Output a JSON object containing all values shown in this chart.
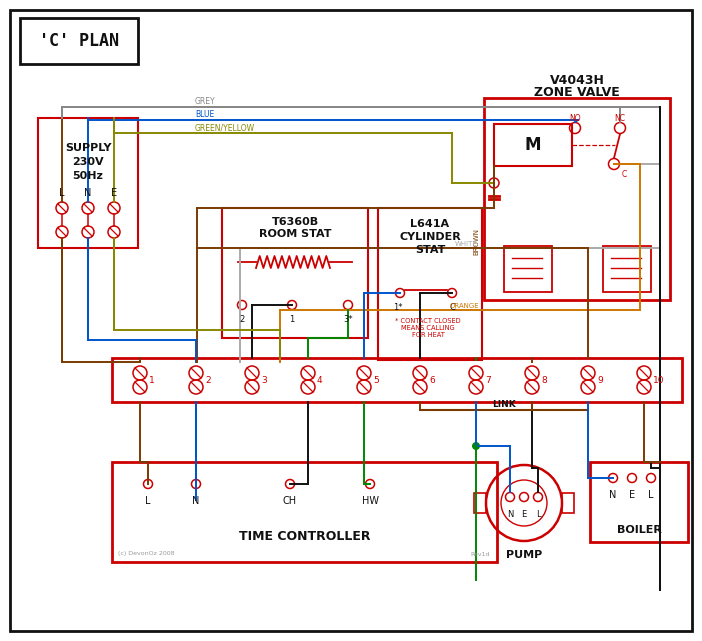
{
  "bg_color": "#ffffff",
  "red": "#cc0000",
  "blue": "#0055cc",
  "green": "#008800",
  "grey": "#888888",
  "brown": "#7a3b00",
  "orange": "#cc7700",
  "black": "#111111",
  "gy_color": "#888800",
  "title": "'C' PLAN",
  "zone_valve_label1": "V4043H",
  "zone_valve_label2": "ZONE VALVE",
  "room_stat_label1": "T6360B",
  "room_stat_label2": "ROOM STAT",
  "cyl_stat_label1": "L641A",
  "cyl_stat_label2": "CYLINDER",
  "cyl_stat_label3": "STAT",
  "time_ctrl_label": "TIME CONTROLLER",
  "pump_label": "PUMP",
  "boiler_label": "BOILER",
  "supply_label1": "SUPPLY",
  "supply_label2": "230V",
  "supply_label3": "50Hz",
  "link_label": "LINK",
  "contact_note": "* CONTACT CLOSED\nMEANS CALLING\nFOR HEAT",
  "copyright": "(c) DevonOz 2008",
  "rev": "Rev1d"
}
